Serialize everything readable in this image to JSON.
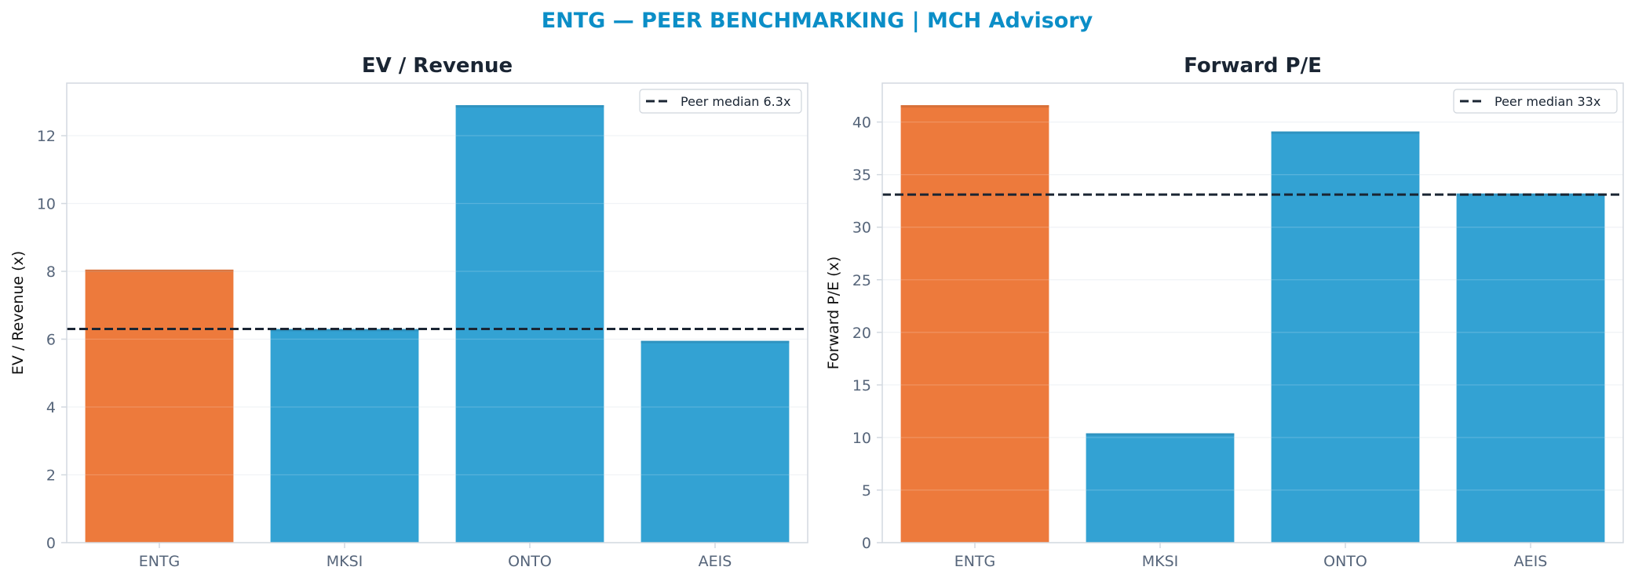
{
  "suptitle": "ENTG — PEER BENCHMARKING | MCH Advisory",
  "colors": {
    "title": "#0b8ec7",
    "subplot_title": "#1a2533",
    "highlight_bar": "#ed7a3c",
    "peer_bar": "#33a2d3",
    "median_line": "#1a2533",
    "tick_label": "#56657a",
    "axis_frame": "#d3d9e0",
    "grid": "#eef1f4"
  },
  "chart_data": [
    {
      "type": "bar",
      "title": "EV / Revenue",
      "ylabel": "EV / Revenue (x)",
      "xlabel": "",
      "categories": [
        "ENTG",
        "MKSI",
        "ONTO",
        "AEIS"
      ],
      "values": [
        8.05,
        6.3,
        12.9,
        5.95
      ],
      "highlight": "ENTG",
      "ylim": [
        0,
        13.55
      ],
      "yticks": [
        0,
        2,
        4,
        6,
        8,
        10,
        12
      ],
      "reference_line": {
        "value": 6.3,
        "label": "Peer median 6.3x",
        "style": "dashed"
      },
      "legend_position": "top-right",
      "grid": true
    },
    {
      "type": "bar",
      "title": "Forward P/E",
      "ylabel": "Forward P/E (x)",
      "xlabel": "",
      "categories": [
        "ENTG",
        "MKSI",
        "ONTO",
        "AEIS"
      ],
      "values": [
        41.6,
        10.4,
        39.1,
        33.2
      ],
      "highlight": "ENTG",
      "ylim": [
        0,
        43.7
      ],
      "yticks": [
        0,
        5,
        10,
        15,
        20,
        25,
        30,
        35,
        40
      ],
      "reference_line": {
        "value": 33.1,
        "label": "Peer median 33x",
        "style": "dashed"
      },
      "legend_position": "top-right",
      "grid": true
    }
  ]
}
